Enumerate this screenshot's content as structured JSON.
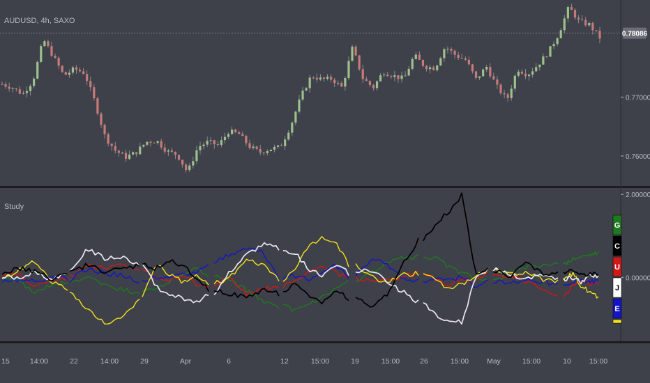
{
  "symbol_label": "AUDUSD, 4h, SAXO",
  "study_label": "Study",
  "colors": {
    "background": "#3e404a",
    "separator": "#1c1d22",
    "up_candle": "#9ec08a",
    "down_candle": "#c97a76",
    "wick": "#9a9ca4",
    "text": "#b9bbc3",
    "last_price_bg": "#6b6d76"
  },
  "price_axis": {
    "last_price": "0.78086",
    "ticks": [
      "0.77000",
      "0.76000"
    ]
  },
  "study_axis": {
    "ticks": [
      "2.00000",
      "0.00000"
    ]
  },
  "time_axis": {
    "ticks": [
      "15",
      "14:00",
      "22",
      "14:00",
      "29",
      "Apr",
      "6",
      "12",
      "15:00",
      "19",
      "15:00",
      "26",
      "15:00",
      "May",
      "15:00",
      "10",
      "15:00"
    ]
  },
  "legend": [
    {
      "label": "G",
      "color": "#1f7a1f",
      "text_color": "#ffffff"
    },
    {
      "label": "C",
      "color": "#000000",
      "text_color": "#ffffff"
    },
    {
      "label": "U",
      "color": "#d01818",
      "text_color": "#ffffff"
    },
    {
      "label": "J",
      "color": "#ffffff",
      "text_color": "#000000"
    },
    {
      "label": "E",
      "color": "#1515c8",
      "text_color": "#ffffff"
    },
    {
      "label": "",
      "color": "#f2e21a",
      "text_color": "#000000"
    }
  ],
  "chart_data": [
    {
      "type": "candlestick",
      "title": "AUDUSD, 4h, SAXO",
      "x_ticks": [
        "15",
        "14:00",
        "22",
        "14:00",
        "29",
        "Apr",
        "6",
        "12",
        "15:00",
        "19",
        "15:00",
        "26",
        "15:00",
        "May",
        "15:00",
        "10",
        "15:00"
      ],
      "y_ticks": [
        0.77,
        0.76
      ],
      "last_price": 0.78086,
      "ylim": [
        0.7555,
        0.7859
      ],
      "close_path": [
        0.7722,
        0.7716,
        0.7705,
        0.7728,
        0.7798,
        0.7768,
        0.7736,
        0.7748,
        0.7741,
        0.7692,
        0.7632,
        0.7609,
        0.7598,
        0.7606,
        0.7624,
        0.7626,
        0.7608,
        0.7602,
        0.7572,
        0.7615,
        0.7624,
        0.7618,
        0.7642,
        0.7637,
        0.7616,
        0.7606,
        0.7612,
        0.7615,
        0.7651,
        0.7701,
        0.7736,
        0.773,
        0.7731,
        0.7716,
        0.7784,
        0.7732,
        0.7716,
        0.7743,
        0.7736,
        0.7731,
        0.7771,
        0.7752,
        0.7749,
        0.7786,
        0.7771,
        0.7763,
        0.773,
        0.7752,
        0.7718,
        0.7695,
        0.7748,
        0.7738,
        0.7755,
        0.7776,
        0.7807,
        0.7853,
        0.7828,
        0.7823,
        0.7801
      ]
    },
    {
      "type": "line",
      "title": "Study",
      "y_ticks": [
        2.0,
        0.0
      ],
      "ylim": [
        -1.49,
        2.07
      ],
      "series": [
        {
          "name": "G",
          "color": "#1f7a1f",
          "values": [
            0.0,
            -0.1,
            -0.35,
            -0.2,
            -0.1,
            0.0,
            -0.15,
            -0.3,
            -0.35,
            -0.3,
            -0.1,
            0.1,
            0.2,
            0.05,
            -0.1,
            -0.3,
            -0.6,
            -0.7,
            -0.8,
            -0.65,
            -0.5,
            -0.3,
            -0.1,
            0.1,
            0.35,
            0.45,
            0.5,
            0.45,
            0.25,
            0.1,
            0.0,
            -0.1,
            0.1,
            0.25,
            0.3,
            0.3,
            0.45,
            0.5,
            0.55,
            0.6
          ]
        },
        {
          "name": "C",
          "color": "#000000",
          "values": [
            0.1,
            0.2,
            0.15,
            -0.05,
            0.1,
            0.3,
            0.15,
            0.2,
            0.3,
            0.2,
            0.4,
            0.3,
            0.0,
            -0.3,
            -0.4,
            -0.5,
            -0.3,
            -0.4,
            -0.1,
            -0.5,
            -0.6,
            -0.3,
            -0.5,
            -0.7,
            -0.4,
            0.3,
            0.9,
            1.3,
            1.6,
            2.0,
            0.1,
            0.2,
            0.0,
            0.35,
            0.1,
            0.1,
            0.2,
            0.05,
            0.1,
            0.05
          ]
        },
        {
          "name": "U",
          "color": "#d01818",
          "values": [
            0.0,
            0.1,
            -0.2,
            -0.1,
            0.0,
            0.3,
            0.2,
            0.35,
            0.2,
            0.0,
            -0.1,
            0.05,
            -0.15,
            -0.2,
            0.0,
            -0.4,
            -0.3,
            -0.2,
            -0.1,
            0.1,
            0.3,
            0.1,
            0.0,
            -0.1,
            -0.05,
            0.0,
            0.1,
            -0.05,
            -0.2,
            0.0,
            -0.1,
            0.1,
            0.0,
            -0.1,
            -0.3,
            -0.5,
            -0.2,
            -0.1,
            -0.15,
            -0.2
          ]
        },
        {
          "name": "J",
          "color": "#e8e8ee",
          "values": [
            0.0,
            0.0,
            0.1,
            -0.05,
            0.1,
            0.7,
            0.45,
            0.5,
            0.3,
            -0.2,
            -0.45,
            -0.5,
            -0.6,
            -0.4,
            0.15,
            0.55,
            0.8,
            0.7,
            0.55,
            0.2,
            0.0,
            0.3,
            0.1,
            0.2,
            -0.1,
            -0.35,
            -0.6,
            -0.9,
            -1.05,
            -1.1,
            0.0,
            0.2,
            0.1,
            -0.05,
            0.1,
            -0.05,
            0.0,
            -0.1,
            0.05,
            0.0
          ]
        },
        {
          "name": "E",
          "color": "#1515c8",
          "values": [
            -0.1,
            -0.05,
            -0.1,
            0.0,
            -0.05,
            0.2,
            0.1,
            0.05,
            -0.1,
            0.0,
            -0.05,
            0.05,
            0.1,
            0.35,
            0.55,
            0.7,
            0.6,
            0.0,
            0.05,
            -0.05,
            0.1,
            0.3,
            0.0,
            0.45,
            0.3,
            0.0,
            -0.1,
            0.0,
            -0.05,
            0.0,
            -0.2,
            -0.1,
            -0.15,
            -0.05,
            -0.1,
            -0.2,
            -0.15,
            -0.05,
            -0.1,
            -0.1
          ]
        },
        {
          "name": "",
          "color": "#f2e21a",
          "values": [
            0.0,
            0.15,
            0.4,
            -0.1,
            -0.3,
            -0.8,
            -1.1,
            -1.0,
            -0.5,
            0.3,
            0.1,
            -0.1,
            0.05,
            -0.15,
            0.0,
            0.4,
            0.3,
            -0.05,
            0.2,
            0.8,
            0.95,
            0.85,
            0.3,
            0.0,
            -0.1,
            0.05,
            0.1,
            -0.1,
            -0.3,
            -0.15,
            0.0,
            0.2,
            0.05,
            0.1,
            -0.05,
            -0.1,
            0.1,
            -0.2,
            -0.35,
            -0.5
          ]
        }
      ]
    }
  ]
}
